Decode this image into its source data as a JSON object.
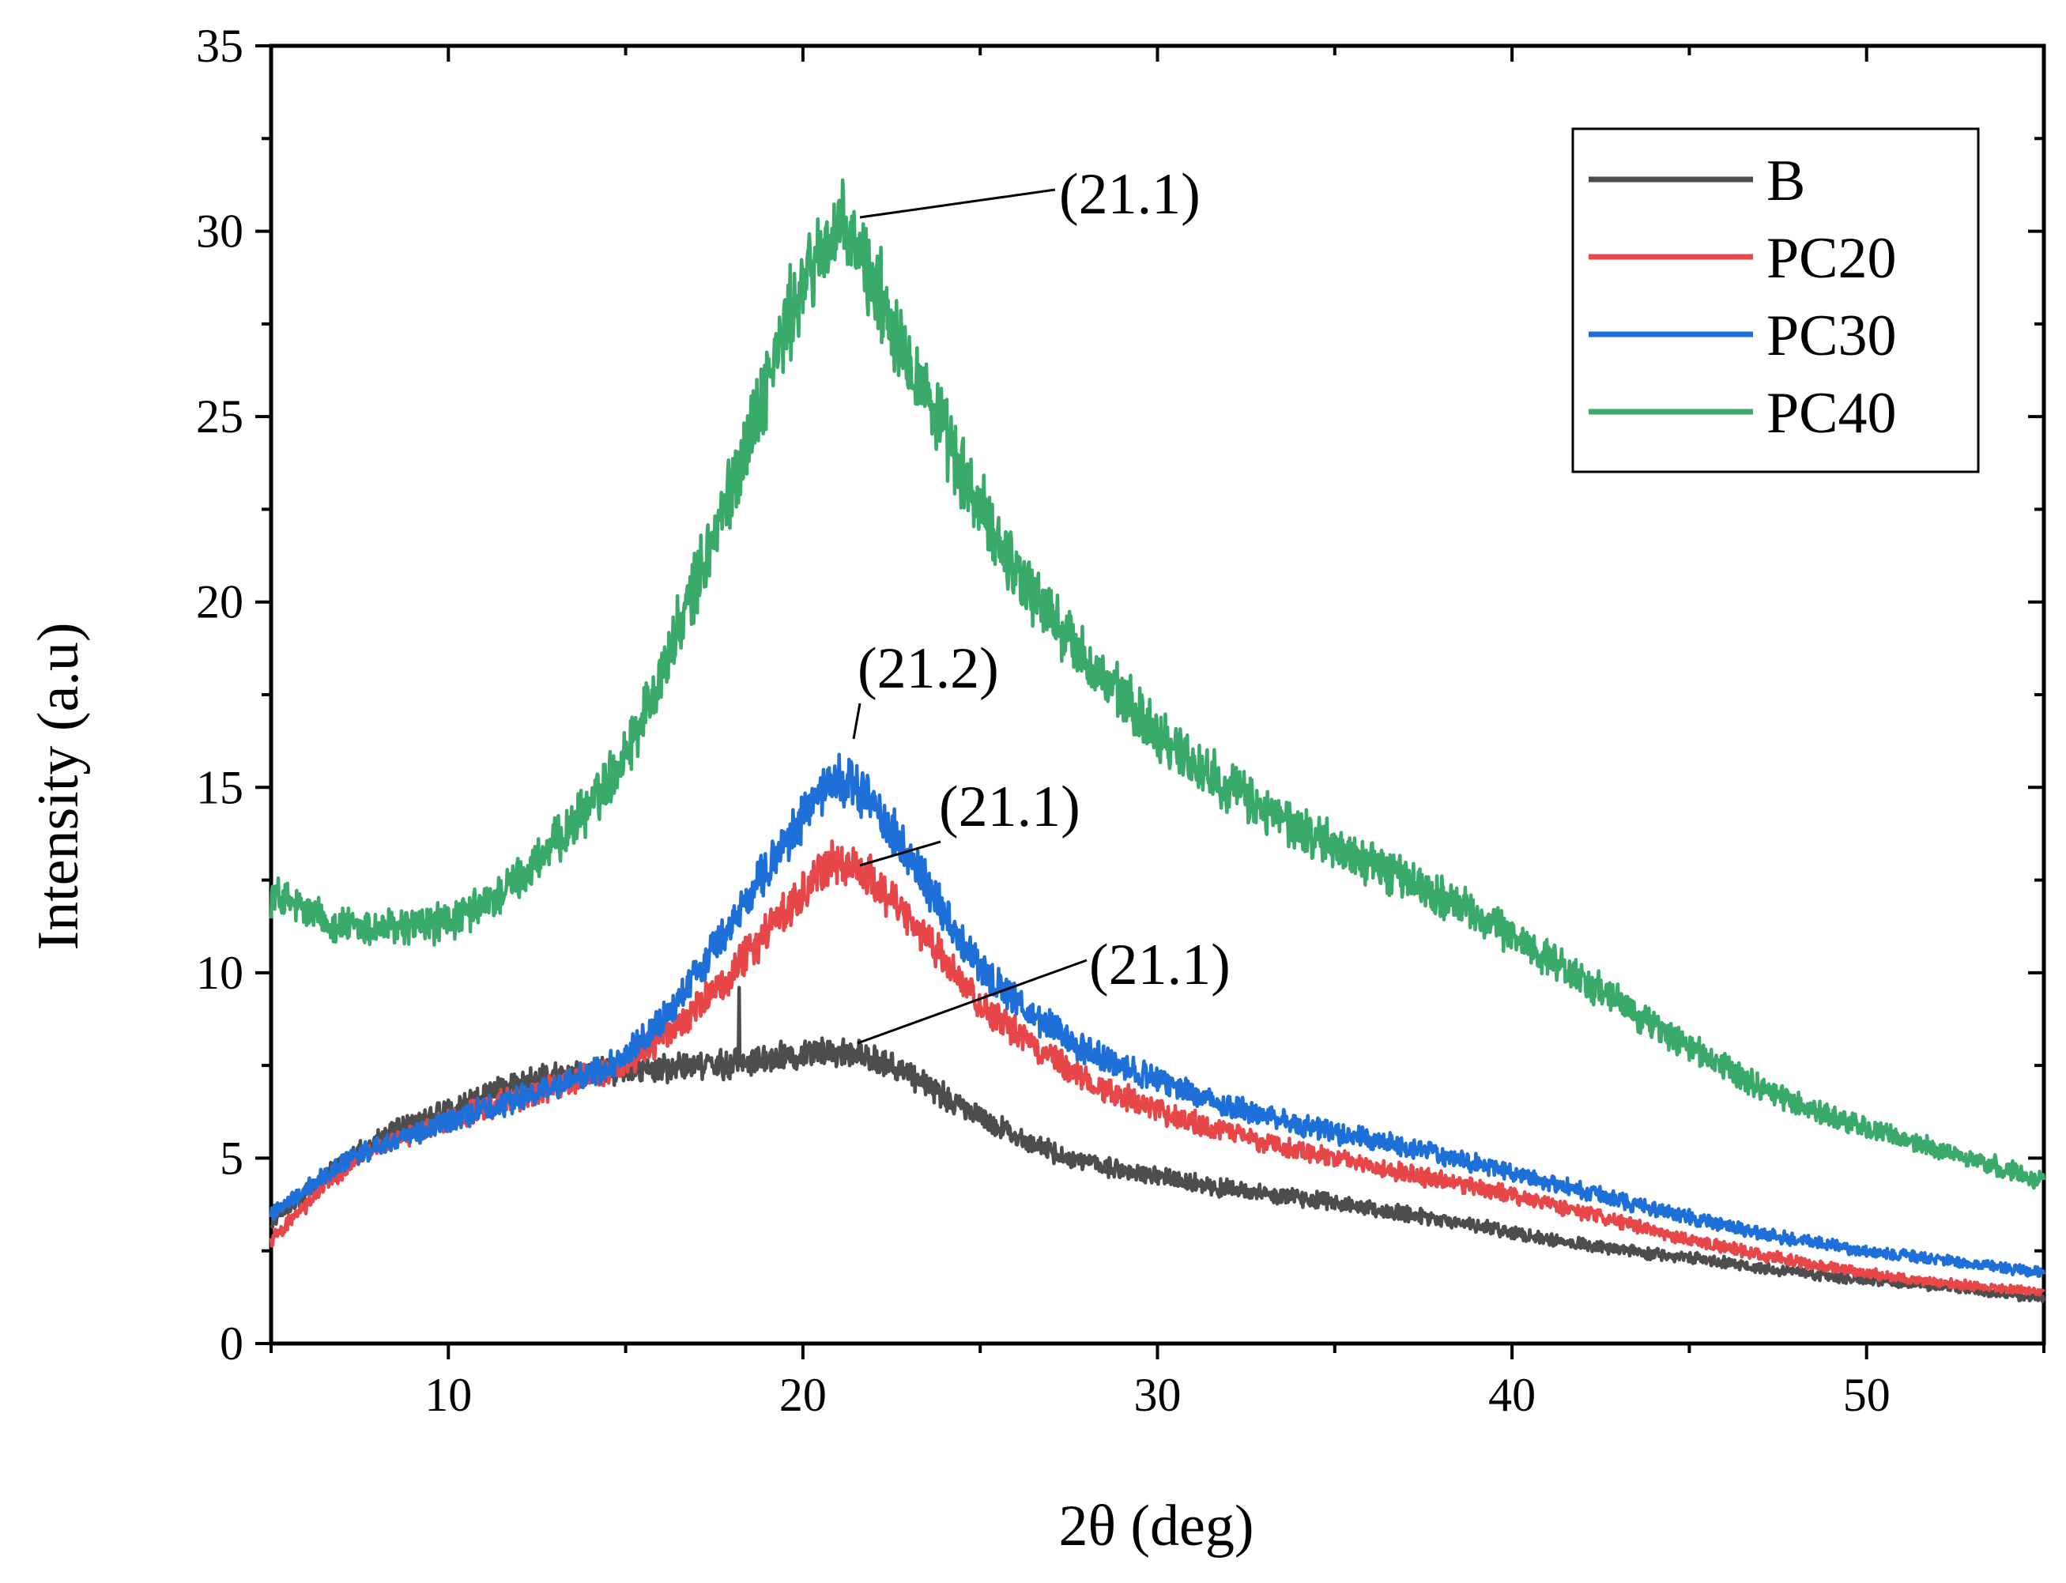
{
  "chart_data": {
    "type": "line",
    "title": "",
    "xlabel": "2θ (deg)",
    "ylabel": "Intensity (a.u)",
    "xlim": [
      5,
      55
    ],
    "ylim": [
      0,
      35
    ],
    "x_ticks": [
      "10",
      "20",
      "30",
      "40",
      "50"
    ],
    "y_ticks": [
      "0",
      "5",
      "10",
      "15",
      "20",
      "25",
      "30",
      "35"
    ],
    "grid": false,
    "legend_position": "top-right",
    "x": [
      5,
      7.5,
      10,
      12.5,
      15,
      17.5,
      20,
      21,
      22.5,
      25,
      27.5,
      30,
      32.5,
      35,
      37.5,
      40,
      42.5,
      45,
      47.5,
      50,
      52.5,
      55
    ],
    "series": [
      {
        "name": "B",
        "color": "#4d4d4d",
        "values": [
          3.3,
          5.2,
          6.3,
          7.1,
          7.4,
          7.5,
          7.8,
          7.9,
          7.5,
          6.1,
          5.0,
          4.5,
          4.1,
          3.8,
          3.4,
          3.0,
          2.6,
          2.3,
          2.0,
          1.7,
          1.5,
          1.2
        ],
        "spike": {
          "x": 18.2,
          "y": 9.6
        }
      },
      {
        "name": "PC20",
        "color": "#e8474a",
        "values": [
          2.8,
          5.0,
          6.0,
          6.8,
          7.6,
          9.5,
          12.2,
          13.0,
          12.0,
          9.2,
          7.4,
          6.3,
          5.6,
          5.0,
          4.5,
          4.0,
          3.4,
          2.8,
          2.3,
          1.9,
          1.6,
          1.4
        ]
      },
      {
        "name": "PC30",
        "color": "#1f6fd9",
        "values": [
          3.5,
          5.1,
          6.0,
          6.8,
          7.8,
          10.6,
          14.2,
          15.2,
          13.8,
          10.2,
          8.2,
          7.1,
          6.3,
          5.7,
          5.2,
          4.6,
          4.0,
          3.4,
          2.9,
          2.5,
          2.2,
          1.9
        ]
      },
      {
        "name": "PC40",
        "color": "#3aaa6a",
        "values": [
          12.1,
          11.2,
          11.4,
          13.0,
          16.0,
          21.8,
          28.5,
          29.9,
          27.6,
          22.5,
          19.0,
          16.5,
          14.7,
          13.4,
          12.3,
          11.0,
          9.5,
          8.0,
          6.7,
          5.8,
          5.1,
          4.4
        ]
      }
    ],
    "annotations": [
      {
        "text": "(21.1)",
        "x": 21.1,
        "y": 30.3,
        "series": "PC40"
      },
      {
        "text": "(21.2)",
        "x": 21.2,
        "y": 16.0,
        "series": "PC30"
      },
      {
        "text": "(21.1)",
        "x": 21.1,
        "y": 13.0,
        "series": "PC20"
      },
      {
        "text": "(21.1)",
        "x": 21.1,
        "y": 8.0,
        "series": "B"
      }
    ]
  }
}
